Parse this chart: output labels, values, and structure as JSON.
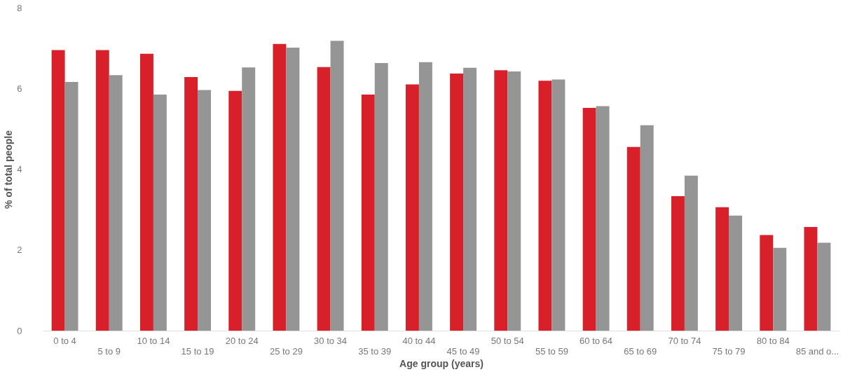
{
  "chart_data": {
    "type": "bar",
    "xlabel": "Age group (years)",
    "ylabel": "% of total people",
    "categories": [
      "0 to 4",
      "5 to 9",
      "10 to 14",
      "15 to 19",
      "20 to 24",
      "25 to 29",
      "30 to 34",
      "35 to 39",
      "40 to 44",
      "45 to 49",
      "50 to 54",
      "55 to 59",
      "60 to 64",
      "65 to 69",
      "70 to 74",
      "75 to 79",
      "80 to 84",
      "85 and o..."
    ],
    "series": [
      {
        "color": "#d7202a",
        "values": [
          6.95,
          6.95,
          6.86,
          6.28,
          5.94,
          7.1,
          6.53,
          5.85,
          6.1,
          6.37,
          6.45,
          6.19,
          5.52,
          4.55,
          3.33,
          3.06,
          2.37,
          2.57
        ]
      },
      {
        "color": "#959595",
        "values": [
          6.16,
          6.33,
          5.85,
          5.96,
          6.52,
          7.01,
          7.18,
          6.63,
          6.65,
          6.51,
          6.42,
          6.22,
          5.56,
          5.09,
          3.84,
          2.85,
          2.05,
          2.18
        ]
      }
    ],
    "ylim": [
      0,
      8
    ],
    "yticks": [
      0,
      2,
      4,
      6,
      8
    ],
    "grid": false,
    "legend": false
  }
}
